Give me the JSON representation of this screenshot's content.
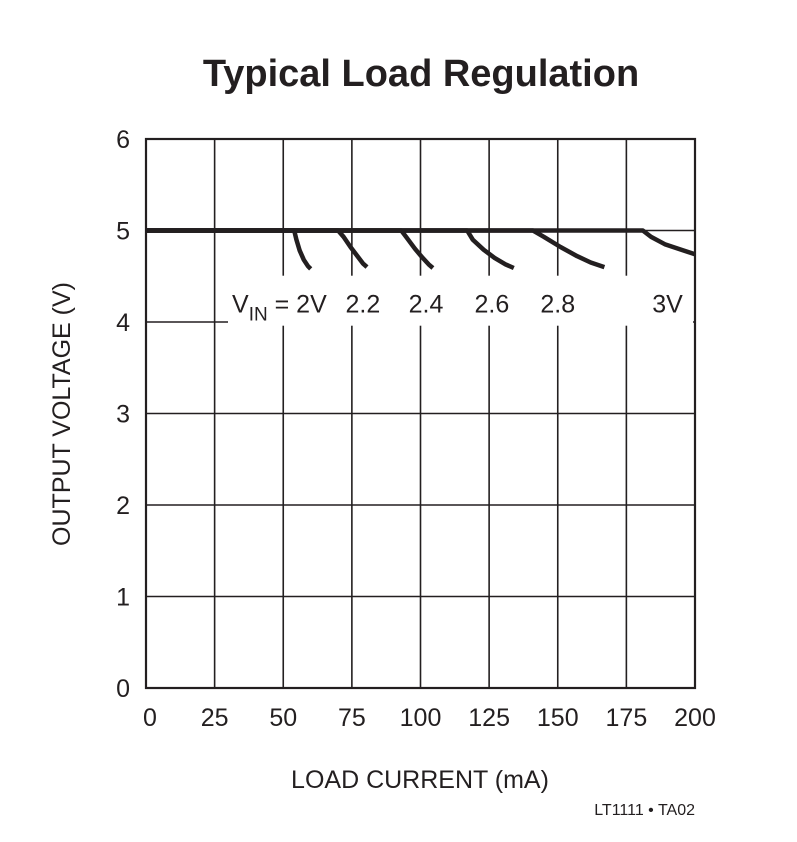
{
  "chart_data": {
    "type": "line",
    "title": "Typical Load Regulation",
    "xlabel": "LOAD CURRENT (mA)",
    "ylabel": "OUTPUT VOLTAGE (V)",
    "xlim": [
      0,
      200
    ],
    "ylim": [
      0,
      6
    ],
    "xticks": [
      0,
      25,
      50,
      75,
      100,
      125,
      150,
      175,
      200
    ],
    "yticks": [
      0,
      1,
      2,
      3,
      4,
      5,
      6
    ],
    "grid": true,
    "footer": "LT1111 • TA02",
    "series_label_prefix": "V",
    "series_label_subscript": "IN",
    "series": [
      {
        "name": "= 2V",
        "x": [
          0,
          54,
          54.8,
          56,
          57.5,
          59,
          60
        ],
        "y": [
          5.0,
          5.0,
          4.9,
          4.78,
          4.68,
          4.61,
          4.58
        ]
      },
      {
        "name": "2.2",
        "x": [
          0,
          70,
          72,
          74.5,
          77,
          79,
          80.5
        ],
        "y": [
          5.0,
          5.0,
          4.93,
          4.82,
          4.72,
          4.64,
          4.6
        ]
      },
      {
        "name": "2.4",
        "x": [
          0,
          93,
          95,
          98,
          100.5,
          103,
          104.5
        ],
        "y": [
          5.0,
          5.0,
          4.92,
          4.8,
          4.71,
          4.63,
          4.59
        ]
      },
      {
        "name": "2.6",
        "x": [
          0,
          117,
          119,
          123,
          127,
          131,
          134
        ],
        "y": [
          5.0,
          5.0,
          4.9,
          4.79,
          4.7,
          4.63,
          4.59
        ]
      },
      {
        "name": "2.8",
        "x": [
          0,
          141,
          145,
          151,
          157,
          162,
          167
        ],
        "y": [
          5.0,
          5.0,
          4.93,
          4.82,
          4.72,
          4.65,
          4.6
        ]
      },
      {
        "name": "3V",
        "x": [
          0,
          181,
          184,
          189,
          195,
          200
        ],
        "y": [
          5.0,
          5.0,
          4.93,
          4.85,
          4.79,
          4.74
        ]
      }
    ]
  }
}
